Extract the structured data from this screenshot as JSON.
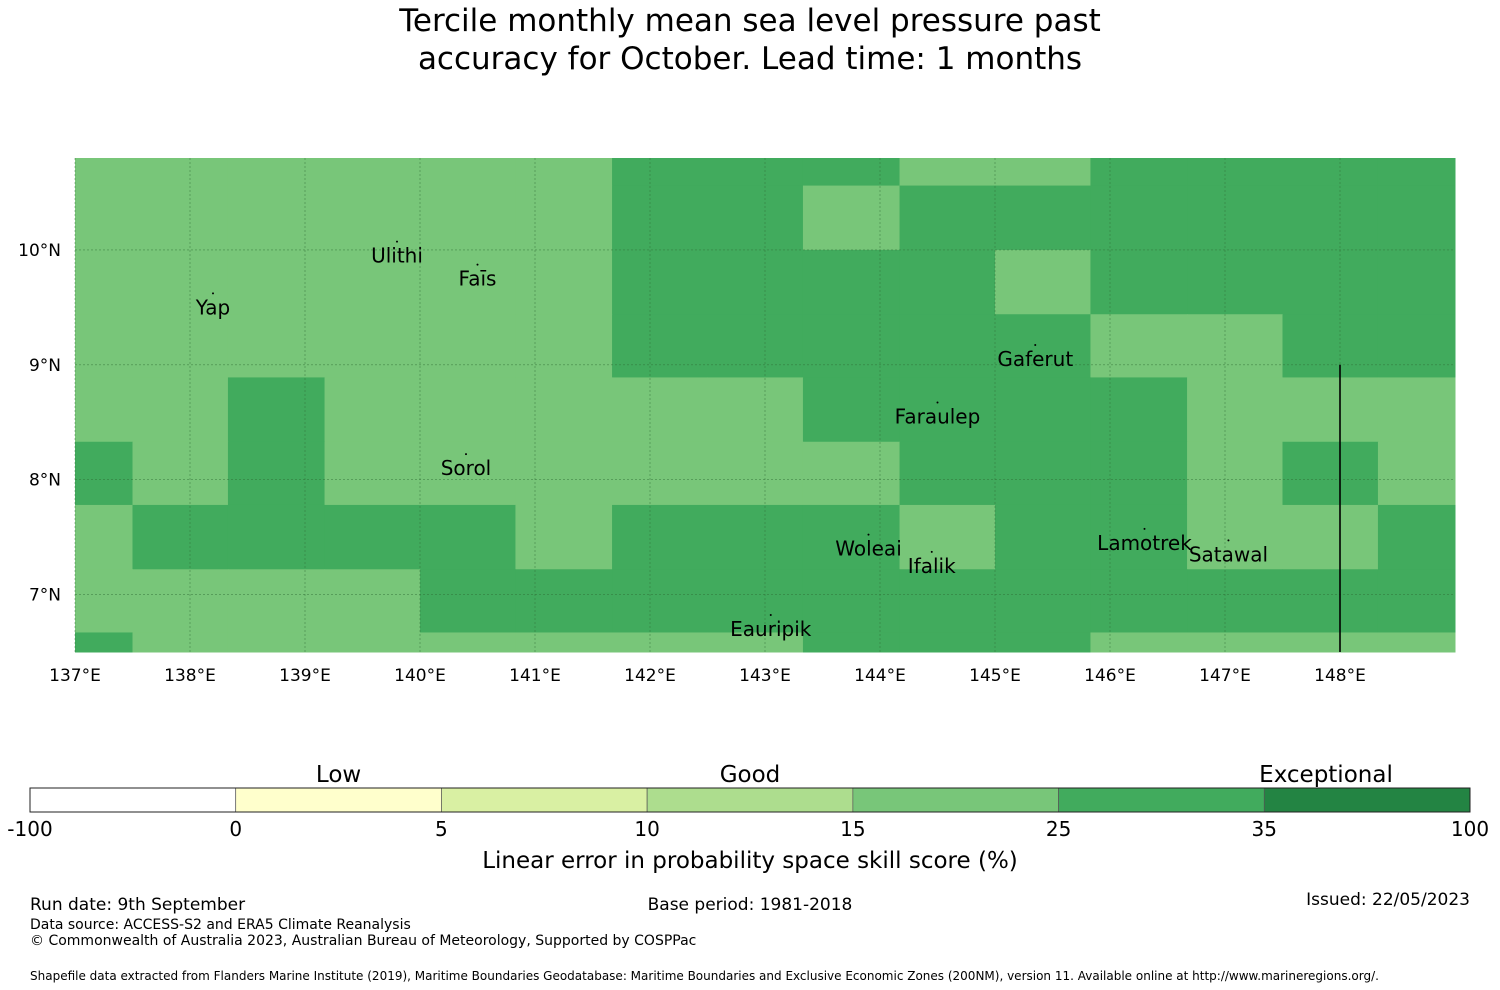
{
  "title": {
    "line1": "Tercile monthly mean sea level pressure past",
    "line2": "accuracy for October. Lead time: 1 months"
  },
  "map": {
    "lon_range": [
      137,
      149
    ],
    "lat_range": [
      6.5,
      10.8
    ],
    "lon_ticks": [
      {
        "value": 137,
        "label": "137°E"
      },
      {
        "value": 138,
        "label": "138°E"
      },
      {
        "value": 139,
        "label": "139°E"
      },
      {
        "value": 140,
        "label": "140°E"
      },
      {
        "value": 141,
        "label": "141°E"
      },
      {
        "value": 142,
        "label": "142°E"
      },
      {
        "value": 143,
        "label": "143°E"
      },
      {
        "value": 144,
        "label": "144°E"
      },
      {
        "value": 145,
        "label": "145°E"
      },
      {
        "value": 146,
        "label": "146°E"
      },
      {
        "value": 147,
        "label": "147°E"
      },
      {
        "value": 148,
        "label": "148°E"
      }
    ],
    "lat_ticks": [
      {
        "value": 10,
        "label": "10°N"
      },
      {
        "value": 9,
        "label": "9°N"
      },
      {
        "value": 8,
        "label": "8°N"
      },
      {
        "value": 7,
        "label": "7°N"
      }
    ],
    "grid_lon_edges": [
      137,
      137.5,
      138.33,
      139.17,
      140,
      140.83,
      141.67,
      142.5,
      143.33,
      144.17,
      145,
      145.83,
      146.67,
      147.5,
      148.33,
      149
    ],
    "grid_lat_edges": [
      10.8,
      10.56,
      10.0,
      9.44,
      8.89,
      8.33,
      7.78,
      7.22,
      6.67,
      6.5
    ],
    "grid_categories_note_scale": "1 = 15 to 25, 2 = 25 to 35",
    "grid_categories": [
      [
        1,
        1,
        1,
        1,
        1,
        1,
        2,
        2,
        2,
        1,
        1,
        2,
        2,
        2,
        2
      ],
      [
        1,
        1,
        1,
        1,
        1,
        1,
        2,
        2,
        1,
        2,
        2,
        2,
        2,
        2,
        2
      ],
      [
        1,
        1,
        1,
        1,
        1,
        1,
        2,
        2,
        2,
        2,
        1,
        2,
        2,
        2,
        2
      ],
      [
        1,
        1,
        1,
        1,
        1,
        1,
        2,
        2,
        2,
        2,
        2,
        1,
        1,
        2,
        2
      ],
      [
        1,
        1,
        2,
        1,
        1,
        1,
        1,
        1,
        2,
        2,
        2,
        2,
        1,
        1,
        1
      ],
      [
        2,
        1,
        2,
        1,
        1,
        1,
        1,
        1,
        1,
        2,
        2,
        2,
        1,
        2,
        1
      ],
      [
        1,
        2,
        2,
        2,
        2,
        1,
        2,
        2,
        2,
        1,
        2,
        2,
        1,
        1,
        2
      ],
      [
        1,
        1,
        1,
        1,
        2,
        2,
        2,
        2,
        2,
        2,
        2,
        2,
        2,
        2,
        2
      ],
      [
        2,
        1,
        1,
        1,
        1,
        1,
        1,
        1,
        2,
        2,
        2,
        1,
        1,
        1,
        1
      ]
    ],
    "boundary_line": {
      "lon": 148,
      "lat_from": 6.5,
      "lat_to": 9.0
    },
    "islands": [
      {
        "name": "Yap",
        "lon": 138.2,
        "lat": 9.5
      },
      {
        "name": "Ulithi",
        "lon": 139.8,
        "lat": 9.95
      },
      {
        "name": "Faīs",
        "lon": 140.5,
        "lat": 9.75
      },
      {
        "name": "Gaferut",
        "lon": 145.35,
        "lat": 9.05
      },
      {
        "name": "Faraulep",
        "lon": 144.5,
        "lat": 8.55
      },
      {
        "name": "Sorol",
        "lon": 140.4,
        "lat": 8.1
      },
      {
        "name": "Woleai",
        "lon": 143.9,
        "lat": 7.4
      },
      {
        "name": "Ifalik",
        "lon": 144.45,
        "lat": 7.25
      },
      {
        "name": "Lamotrek",
        "lon": 146.3,
        "lat": 7.45
      },
      {
        "name": "Satawal",
        "lon": 147.03,
        "lat": 7.35
      },
      {
        "name": "Eauripik",
        "lon": 143.05,
        "lat": 6.7
      }
    ]
  },
  "colorbar": {
    "categories": [
      {
        "label": "Low"
      },
      {
        "label": "Good"
      },
      {
        "label": "Exceptional"
      }
    ],
    "segments": [
      {
        "from": -100,
        "to": 0,
        "color": "#ffffff"
      },
      {
        "from": 0,
        "to": 5,
        "color": "#ffffcc"
      },
      {
        "from": 5,
        "to": 10,
        "color": "#d9f0a3"
      },
      {
        "from": 10,
        "to": 15,
        "color": "#addd8e"
      },
      {
        "from": 15,
        "to": 25,
        "color": "#78c679"
      },
      {
        "from": 25,
        "to": 35,
        "color": "#41ab5d"
      },
      {
        "from": 35,
        "to": 100,
        "color": "#238443"
      }
    ],
    "tick_labels": [
      "-100",
      "0",
      "5",
      "10",
      "15",
      "25",
      "35",
      "100"
    ],
    "label": "Linear error in probability space skill score (%)"
  },
  "footer": {
    "run_date": "Run date: 9th September",
    "base_period": "Base period: 1981-2018",
    "issued": "Issued: 22/05/2023",
    "data_source": "Data source: ACCESS-S2 and ERA5 Climate Reanalysis",
    "copyright": "© Commonwealth of Australia 2023, Australian Bureau of Meteorology, Supported by COSPPac",
    "shapefile": "Shapefile data extracted from Flanders Marine Institute (2019), Maritime Boundaries Geodatabase: Maritime Boundaries and Exclusive Economic Zones (200NM), version 11. Available online at http://www.marineregions.org/."
  }
}
